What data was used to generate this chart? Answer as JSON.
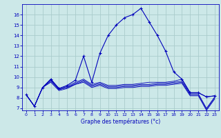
{
  "title": "Graphe des températures (°c)",
  "bg_color": "#cce8e8",
  "grid_color": "#aacccc",
  "line_color": "#0000bb",
  "xlim": [
    -0.5,
    23.5
  ],
  "ylim": [
    6.8,
    17.0
  ],
  "xticks": [
    0,
    1,
    2,
    3,
    4,
    5,
    6,
    7,
    8,
    9,
    10,
    11,
    12,
    13,
    14,
    15,
    16,
    17,
    18,
    19,
    20,
    21,
    22,
    23
  ],
  "yticks": [
    7,
    8,
    9,
    10,
    11,
    12,
    13,
    14,
    15,
    16
  ],
  "main_x": [
    0,
    1,
    2,
    3,
    4,
    5,
    6,
    7,
    8,
    9,
    10,
    11,
    12,
    13,
    14,
    15,
    16,
    17,
    18,
    19,
    20,
    21,
    22,
    23
  ],
  "main_y": [
    8.3,
    7.2,
    9.0,
    9.8,
    8.9,
    9.2,
    9.7,
    12.0,
    9.5,
    12.3,
    14.0,
    15.0,
    15.7,
    16.0,
    16.6,
    15.3,
    14.0,
    12.5,
    10.5,
    9.8,
    8.5,
    8.5,
    8.1,
    8.2
  ],
  "flat1_x": [
    0,
    1,
    2,
    3,
    4,
    5,
    6,
    7,
    8,
    9,
    10,
    11,
    12,
    13,
    14,
    15,
    16,
    17,
    18,
    19,
    20,
    21,
    22,
    23
  ],
  "flat1_y": [
    8.3,
    7.2,
    9.0,
    9.8,
    8.9,
    9.1,
    9.5,
    9.8,
    9.3,
    9.5,
    9.2,
    9.2,
    9.3,
    9.3,
    9.4,
    9.5,
    9.5,
    9.5,
    9.6,
    9.8,
    8.5,
    8.5,
    8.1,
    8.2
  ],
  "flat2_x": [
    0,
    1,
    2,
    3,
    4,
    5,
    6,
    7,
    8,
    9,
    10,
    11,
    12,
    13,
    14,
    15,
    16,
    17,
    18,
    19,
    20,
    21,
    22,
    23
  ],
  "flat2_y": [
    8.3,
    7.2,
    9.0,
    9.7,
    8.8,
    9.0,
    9.4,
    9.7,
    9.2,
    9.4,
    9.1,
    9.1,
    9.2,
    9.2,
    9.3,
    9.3,
    9.4,
    9.4,
    9.5,
    9.6,
    8.4,
    8.4,
    7.0,
    8.1
  ],
  "flat3_x": [
    0,
    1,
    2,
    3,
    4,
    5,
    6,
    7,
    8,
    9,
    10,
    11,
    12,
    13,
    14,
    15,
    16,
    17,
    18,
    19,
    20,
    21,
    22,
    23
  ],
  "flat3_y": [
    8.3,
    7.2,
    9.0,
    9.6,
    8.8,
    9.0,
    9.3,
    9.6,
    9.1,
    9.3,
    9.0,
    9.0,
    9.1,
    9.1,
    9.2,
    9.2,
    9.3,
    9.3,
    9.4,
    9.5,
    8.3,
    8.3,
    6.9,
    8.0
  ],
  "flat4_x": [
    0,
    1,
    2,
    3,
    4,
    5,
    6,
    7,
    8,
    9,
    10,
    11,
    12,
    13,
    14,
    15,
    16,
    17,
    18,
    19,
    20,
    21,
    22,
    23
  ],
  "flat4_y": [
    8.3,
    7.2,
    9.0,
    9.5,
    8.7,
    8.9,
    9.3,
    9.5,
    9.0,
    9.2,
    8.9,
    8.9,
    9.0,
    9.0,
    9.1,
    9.1,
    9.2,
    9.2,
    9.3,
    9.4,
    8.2,
    8.2,
    6.8,
    7.9
  ]
}
